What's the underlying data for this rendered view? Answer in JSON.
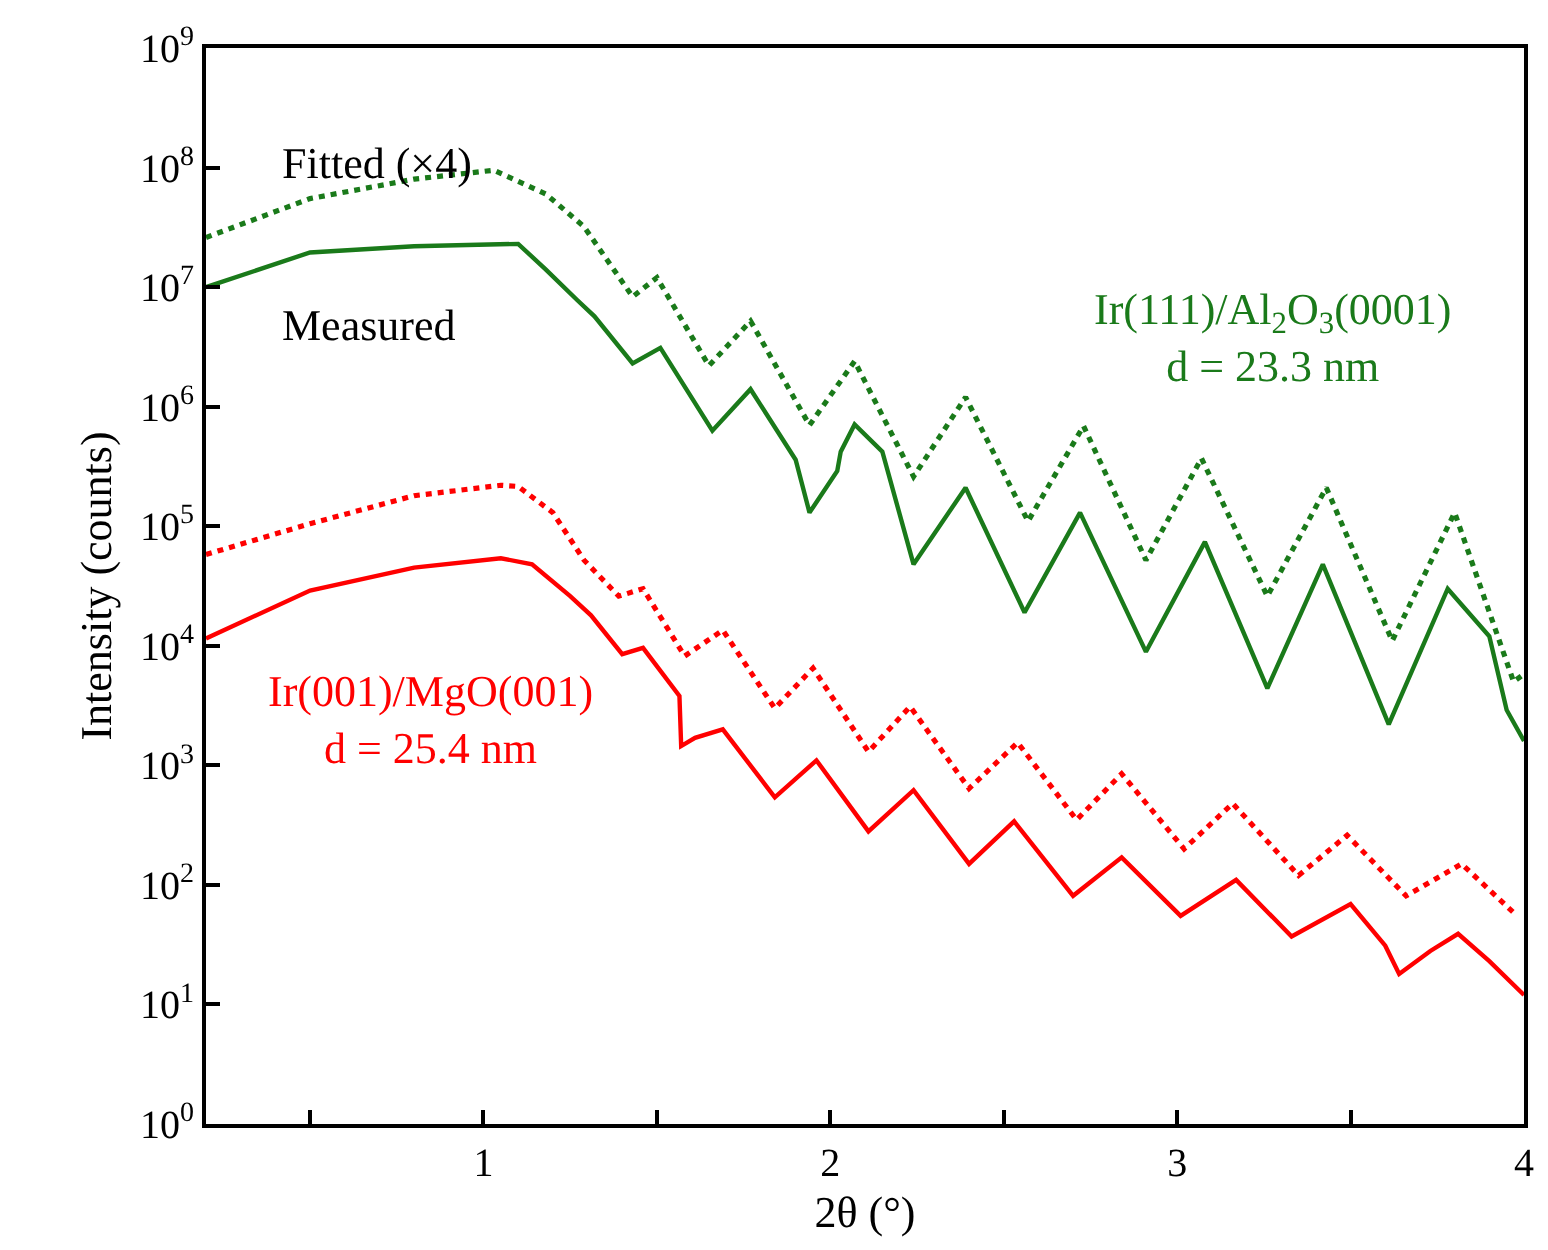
{
  "chart_data": {
    "type": "line",
    "xlabel": "2θ (°)",
    "ylabel": "Intensity (counts)",
    "xlim": [
      0.2,
      4
    ],
    "xticks": [
      {
        "value": 0.5,
        "label": null
      },
      1,
      {
        "value": 1.5,
        "label": null
      },
      2,
      {
        "value": 2.5,
        "label": null
      },
      3,
      {
        "value": 3.5,
        "label": null
      },
      4
    ],
    "ylim": [
      1,
      1000000000
    ],
    "log": true,
    "yticks": [
      {
        "value": 1,
        "label": "10$^{0}$"
      },
      {
        "value": 10,
        "label": "10$^{1}$"
      },
      {
        "value": 100,
        "label": "10$^{2}$"
      },
      {
        "value": 1000,
        "label": "10$^{3}$"
      },
      {
        "value": 10000,
        "label": "10$^{4}$"
      },
      {
        "value": 100000,
        "label": "10$^{5}$"
      },
      {
        "value": 1000000,
        "label": "10$^{6}$"
      },
      {
        "value": 10000000,
        "label": "10$^{7}$"
      },
      {
        "value": 100000000,
        "label": "10$^{8}$"
      },
      {
        "value": 1000000000,
        "label": "10$^{9}$"
      }
    ],
    "legend": false,
    "marker": "none",
    "annotations": [
      "Fitted (×4)",
      "Measured"
    ],
    "series": [
      {
        "color": "#1a7a1a",
        "line_style": "dotted",
        "x": [
          0.2,
          0.5,
          0.8,
          1.03,
          1.18,
          1.29,
          1.43,
          1.5,
          1.65,
          1.77,
          1.94,
          2.07,
          2.24,
          2.39,
          2.57,
          2.73,
          2.91,
          3.07,
          3.26,
          3.43,
          3.62,
          3.8,
          3.97,
          4.0
        ],
        "values": [
          26000000,
          55000000,
          80000000,
          95000000,
          60000000,
          32000000,
          8300000,
          12000000,
          2200000,
          5200000,
          700000,
          2400000,
          260000,
          1200000,
          110000,
          690000,
          52000,
          370000,
          26000,
          210000,
          11000,
          130000,
          5000,
          5800
        ]
      },
      {
        "name": "Ir(111)/Al$_{2}$O$_{3}$(0001)\nd = 23.3 nm",
        "color": "#1a7a1a",
        "line_style": "solid",
        "x": [
          0.2,
          0.5,
          0.8,
          1.1,
          1.18,
          1.27,
          1.32,
          1.43,
          1.51,
          1.66,
          1.77,
          1.9,
          1.94,
          2.02,
          2.03,
          2.07,
          2.15,
          2.24,
          2.39,
          2.56,
          2.72,
          2.91,
          3.08,
          3.26,
          3.42,
          3.61,
          3.78,
          3.9,
          3.95,
          4.0
        ],
        "values": [
          10000000,
          19500000,
          22000000,
          23000000,
          14000000,
          7800000,
          5700000,
          2300000,
          3100000,
          630000,
          1400000,
          360000,
          130000,
          290000,
          420000,
          710000,
          420000,
          48000,
          210000,
          19000,
          130000,
          8900,
          74000,
          4400,
          48000,
          2200,
          30000,
          12000,
          2900,
          1600
        ]
      },
      {
        "color": "#ff0000",
        "line_style": "dotted",
        "x": [
          0.2,
          0.5,
          0.8,
          1.05,
          1.1,
          1.2,
          1.29,
          1.39,
          1.46,
          1.58,
          1.69,
          1.84,
          1.95,
          2.11,
          2.23,
          2.4,
          2.54,
          2.71,
          2.84,
          3.02,
          3.16,
          3.35,
          3.49,
          3.66,
          3.82,
          3.98
        ],
        "values": [
          58000,
          105000,
          180000,
          220000,
          215000,
          130000,
          52000,
          26000,
          30000,
          8200,
          13500,
          3000,
          6500,
          1300,
          3100,
          640,
          1550,
          350,
          850,
          200,
          480,
          120,
          260,
          81,
          150,
          55
        ]
      },
      {
        "name": "Ir(001)/MgO(001)\nd = 25.4 nm",
        "color": "#ff0000",
        "line_style": "solid",
        "x": [
          0.2,
          0.5,
          0.8,
          1.05,
          1.14,
          1.25,
          1.31,
          1.4,
          1.46,
          1.565,
          1.57,
          1.61,
          1.69,
          1.84,
          1.96,
          2.11,
          2.24,
          2.4,
          2.53,
          2.7,
          2.84,
          3.01,
          3.17,
          3.33,
          3.5,
          3.6,
          3.64,
          3.73,
          3.81,
          3.9,
          4.0
        ],
        "values": [
          11500,
          29000,
          45000,
          54000,
          48000,
          26000,
          18000,
          8500,
          9600,
          3800,
          1450,
          1700,
          2000,
          540,
          1100,
          280,
          620,
          150,
          340,
          81,
          170,
          55,
          110,
          37,
          69,
          31,
          18,
          28,
          39,
          23,
          12
        ]
      }
    ]
  }
}
